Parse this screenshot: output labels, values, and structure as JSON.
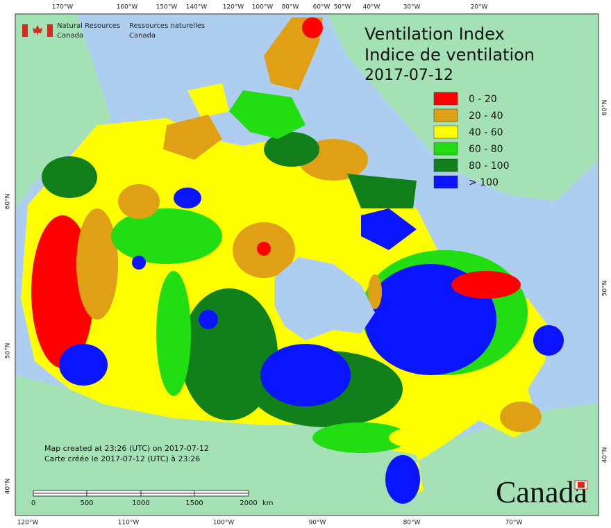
{
  "header": {
    "title_en": "Ventilation Index",
    "title_fr": "Indice de ventilation",
    "date": "2017-07-12"
  },
  "agency": {
    "en_1": "Natural Resources",
    "en_2": "Canada",
    "fr_1": "Ressources naturelles",
    "fr_2": "Canada"
  },
  "legend": [
    {
      "label": "0 - 20",
      "color": "#ff0000"
    },
    {
      "label": "20 - 40",
      "color": "#dfa015"
    },
    {
      "label": "40 - 60",
      "color": "#ffff00"
    },
    {
      "label": "60 - 80",
      "color": "#22dd11"
    },
    {
      "label": "80 - 100",
      "color": "#11801a"
    },
    {
      "label": "> 100",
      "color": "#0a14ff"
    }
  ],
  "graticule": {
    "top": [
      "170°W",
      "160°W",
      "150°W",
      "140°W",
      "120°W",
      "100°W",
      "80°W",
      "60°W",
      "50°W",
      "40°W",
      "30°W",
      "20°W"
    ],
    "bottom": [
      "120°W",
      "110°W",
      "100°W",
      "90°W",
      "80°W",
      "70°W"
    ],
    "left": [
      "60°N",
      "50°N",
      "40°N"
    ],
    "right": [
      "60°N",
      "50°N",
      "40°N"
    ]
  },
  "footer": {
    "created_en": "Map created at 23:26 (UTC) on 2017-07-12",
    "created_fr": "Carte créée le 2017-07-12 (UTC) à 23:26"
  },
  "scale_bar": {
    "labels": [
      "0",
      "500",
      "1000",
      "1500",
      "2000"
    ],
    "unit": "km"
  },
  "wordmark": "Canada"
}
